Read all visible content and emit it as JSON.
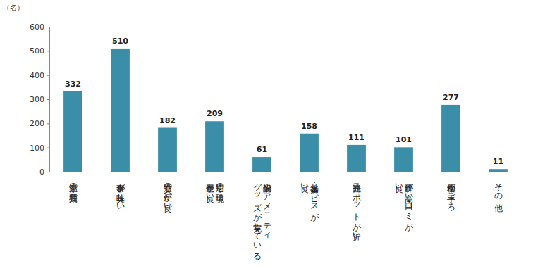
{
  "chart_data": {
    "type": "bar",
    "y_label": "（名）",
    "categories": [
      "温泉の質・種類",
      "食事が美味しい",
      "交通の便が良い",
      "周辺の環境・\n景色が良い",
      "設備やアメニティ\nグッズが充実している",
      "接客・サービスが\n良い",
      "観光スポットが近い",
      "評価が高い・口コミが\n良い",
      "価格が手ごろ",
      "その他"
    ],
    "values": [
      332,
      510,
      182,
      209,
      61,
      158,
      111,
      101,
      277,
      11
    ],
    "color": "#3a8ea7",
    "ylim": [
      0,
      600
    ],
    "yticks": [
      0,
      100,
      200,
      300,
      400,
      500,
      600
    ],
    "grid": false,
    "data_labels": true
  }
}
